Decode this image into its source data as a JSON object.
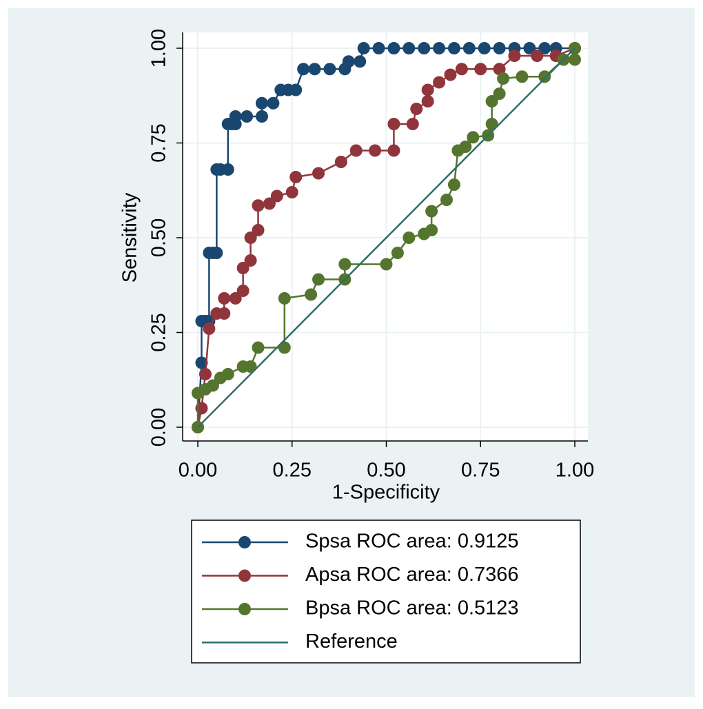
{
  "chart_data": {
    "type": "line",
    "xlabel": "1-Specificity",
    "ylabel": "Sensitivity",
    "xlim": [
      0,
      1
    ],
    "ylim": [
      0,
      1
    ],
    "xticks": [
      {
        "value": 0,
        "label": "0.00"
      },
      {
        "value": 0.25,
        "label": "0.25"
      },
      {
        "value": 0.5,
        "label": "0.50"
      },
      {
        "value": 0.75,
        "label": "0.75"
      },
      {
        "value": 1,
        "label": "1.00"
      }
    ],
    "yticks": [
      {
        "value": 0,
        "label": "0.00"
      },
      {
        "value": 0.25,
        "label": "0.25"
      },
      {
        "value": 0.5,
        "label": "0.50"
      },
      {
        "value": 0.75,
        "label": "0.75"
      },
      {
        "value": 1,
        "label": "1.00"
      }
    ],
    "grid": true,
    "series": [
      {
        "name": "Spsa ROC area: 0.9125",
        "color": "#1a476f",
        "markers": true,
        "x": [
          0,
          0.01,
          0.01,
          0.02,
          0.03,
          0.03,
          0.04,
          0.05,
          0.05,
          0.06,
          0.08,
          0.08,
          0.09,
          0.1,
          0.1,
          0.13,
          0.17,
          0.17,
          0.2,
          0.22,
          0.24,
          0.26,
          0.28,
          0.31,
          0.35,
          0.39,
          0.4,
          0.43,
          0.44,
          0.48,
          0.52,
          0.56,
          0.6,
          0.64,
          0.68,
          0.72,
          0.76,
          0.8,
          0.84,
          0.88,
          0.92,
          0.95,
          1.0
        ],
        "y": [
          0,
          0.17,
          0.28,
          0.28,
          0.28,
          0.46,
          0.46,
          0.46,
          0.68,
          0.68,
          0.68,
          0.8,
          0.8,
          0.8,
          0.82,
          0.82,
          0.82,
          0.855,
          0.855,
          0.89,
          0.89,
          0.89,
          0.945,
          0.945,
          0.945,
          0.945,
          0.965,
          0.965,
          1.0,
          1.0,
          1.0,
          1.0,
          1.0,
          1.0,
          1.0,
          1.0,
          1.0,
          1.0,
          1.0,
          1.0,
          1.0,
          1.0,
          1.0
        ]
      },
      {
        "name": "Apsa ROC area: 0.7366",
        "color": "#90353b",
        "markers": true,
        "x": [
          0,
          0.01,
          0.02,
          0.03,
          0.05,
          0.07,
          0.07,
          0.1,
          0.12,
          0.12,
          0.14,
          0.14,
          0.16,
          0.16,
          0.19,
          0.21,
          0.25,
          0.26,
          0.32,
          0.38,
          0.42,
          0.47,
          0.52,
          0.52,
          0.57,
          0.58,
          0.61,
          0.61,
          0.64,
          0.67,
          0.7,
          0.75,
          0.8,
          0.84,
          0.9,
          0.95,
          1.0
        ],
        "y": [
          0,
          0.05,
          0.14,
          0.26,
          0.3,
          0.3,
          0.34,
          0.34,
          0.36,
          0.42,
          0.44,
          0.5,
          0.52,
          0.585,
          0.59,
          0.61,
          0.62,
          0.66,
          0.67,
          0.7,
          0.73,
          0.73,
          0.73,
          0.8,
          0.8,
          0.84,
          0.86,
          0.89,
          0.91,
          0.93,
          0.945,
          0.945,
          0.945,
          0.98,
          0.98,
          0.98,
          1.0
        ]
      },
      {
        "name": "Bpsa ROC area: 0.5123",
        "color": "#55752f",
        "markers": true,
        "x": [
          0,
          0,
          0.02,
          0.04,
          0.06,
          0.08,
          0.12,
          0.14,
          0.16,
          0.23,
          0.23,
          0.3,
          0.32,
          0.39,
          0.39,
          0.5,
          0.53,
          0.56,
          0.6,
          0.62,
          0.62,
          0.66,
          0.68,
          0.69,
          0.71,
          0.73,
          0.77,
          0.78,
          0.78,
          0.8,
          0.81,
          0.86,
          0.92,
          0.97,
          1.0,
          1.0
        ],
        "y": [
          0,
          0.09,
          0.1,
          0.11,
          0.13,
          0.14,
          0.16,
          0.16,
          0.21,
          0.21,
          0.34,
          0.35,
          0.39,
          0.39,
          0.43,
          0.43,
          0.46,
          0.5,
          0.51,
          0.52,
          0.57,
          0.6,
          0.64,
          0.73,
          0.74,
          0.765,
          0.77,
          0.8,
          0.86,
          0.88,
          0.92,
          0.925,
          0.925,
          0.97,
          1.0,
          0.97
        ]
      },
      {
        "name": "Reference",
        "color": "#2d6d66",
        "markers": false,
        "x": [
          0,
          1
        ],
        "y": [
          0,
          1
        ]
      }
    ]
  }
}
